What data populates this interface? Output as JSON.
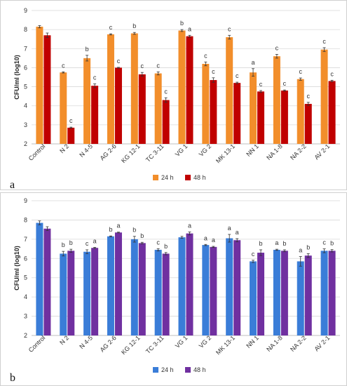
{
  "chart_data": [
    {
      "type": "bar",
      "panel_label": "a",
      "ylabel": "CFU/ml (log10)",
      "ylim": [
        2,
        9
      ],
      "yticks": [
        2,
        3,
        4,
        5,
        6,
        7,
        8,
        9
      ],
      "grid": true,
      "legend_position": "bottom",
      "categories": [
        "Control",
        "N 2",
        "N 4-5",
        "AG 2-6",
        "KG 12-1",
        "TC 3-11",
        "VG 1",
        "VG 2",
        "MK 13-1",
        "NN 1",
        "NA 1-8",
        "NA 2-2",
        "AV 2-1"
      ],
      "series": [
        {
          "name": "24 h",
          "color": "#f28e2b",
          "values": [
            8.15,
            5.75,
            6.5,
            7.75,
            7.8,
            5.7,
            7.95,
            6.2,
            7.6,
            5.75,
            6.6,
            5.4,
            6.95
          ],
          "errors": [
            0.06,
            0.03,
            0.15,
            0.03,
            0.05,
            0.08,
            0.05,
            0.1,
            0.1,
            0.2,
            0.1,
            0.06,
            0.1
          ],
          "significance": [
            "",
            "c",
            "b",
            "c",
            "b",
            "c",
            "b",
            "c",
            "c",
            "a",
            "c",
            "c",
            "c"
          ]
        },
        {
          "name": "48 h",
          "color": "#c00000",
          "values": [
            7.7,
            2.85,
            5.05,
            6.0,
            5.65,
            4.3,
            7.65,
            5.35,
            5.2,
            4.75,
            4.8,
            4.1,
            5.3
          ],
          "errors": [
            0.12,
            0.03,
            0.1,
            0.02,
            0.1,
            0.12,
            0.05,
            0.12,
            0.04,
            0.05,
            0.03,
            0.08,
            0.04
          ],
          "significance": [
            "",
            "c",
            "c",
            "c",
            "c",
            "c",
            "a",
            "c",
            "c",
            "c",
            "c",
            "c",
            "c"
          ]
        }
      ]
    },
    {
      "type": "bar",
      "panel_label": "b",
      "ylabel": "CFU/ml (log10)",
      "ylim": [
        2,
        9
      ],
      "yticks": [
        2,
        3,
        4,
        5,
        6,
        7,
        8,
        9
      ],
      "grid": true,
      "legend_position": "bottom",
      "categories": [
        "Control",
        "N 2",
        "N 4-5",
        "AG 2-6",
        "KG 12-1",
        "TC 3-11",
        "VG 1",
        "VG 2",
        "MK 13-1",
        "NN 1",
        "NA 1-8",
        "NA 2-2",
        "AV 2-1"
      ],
      "series": [
        {
          "name": "24 h",
          "color": "#3a7dd8",
          "values": [
            7.85,
            6.25,
            6.35,
            7.15,
            7.0,
            6.45,
            7.1,
            6.7,
            7.05,
            5.85,
            6.45,
            5.85,
            6.4
          ],
          "errors": [
            0.1,
            0.12,
            0.1,
            0.02,
            0.15,
            0.06,
            0.05,
            0.03,
            0.2,
            0.06,
            0.03,
            0.25,
            0.1
          ],
          "significance": [
            "",
            "b",
            "c",
            "b",
            "b",
            "c",
            "",
            "a",
            "a",
            "c",
            "a",
            "a",
            "c"
          ]
        },
        {
          "name": "48 h",
          "color": "#7030a0",
          "values": [
            7.55,
            6.4,
            6.55,
            7.35,
            6.8,
            6.25,
            7.3,
            6.6,
            6.95,
            6.3,
            6.4,
            6.15,
            6.4
          ],
          "errors": [
            0.1,
            0.08,
            0.03,
            0.02,
            0.04,
            0.06,
            0.08,
            0.03,
            0.08,
            0.15,
            0.05,
            0.1,
            0.06
          ],
          "significance": [
            "",
            "b",
            "a",
            "a",
            "b",
            "b",
            "a",
            "a",
            "a",
            "b",
            "b",
            "b",
            "b"
          ]
        }
      ]
    }
  ]
}
